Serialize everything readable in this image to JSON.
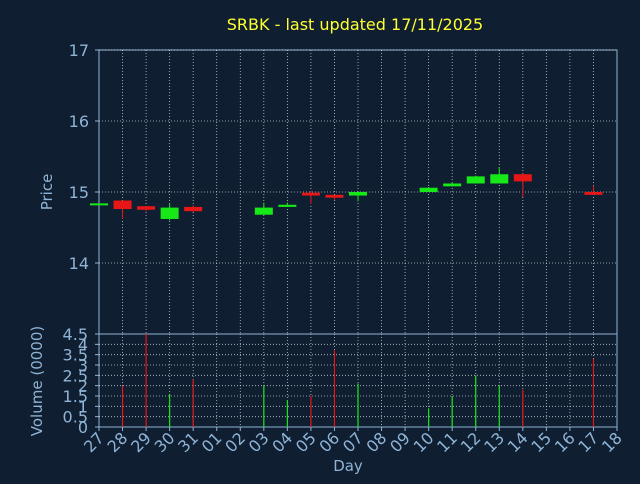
{
  "chart_data": {
    "type": "candlestick",
    "title": "SRBK - last updated 17/11/2025",
    "xlabel": "Day",
    "ylabel": "Price",
    "ylabel_volume": "Volume (0000)",
    "colors": {
      "background": "#0f1e30",
      "axis": "#8fb4d6",
      "title": "#ffff33",
      "up": "#17e817",
      "down": "#e81717",
      "grid": "#ffffff"
    },
    "categories": [
      "27",
      "28",
      "29",
      "30",
      "31",
      "01",
      "02",
      "03",
      "04",
      "05",
      "06",
      "07",
      "08",
      "09",
      "10",
      "11",
      "12",
      "13",
      "14",
      "15",
      "16",
      "17",
      "18"
    ],
    "price_ylim": [
      13.0,
      17.0
    ],
    "price_ticks": [
      "14",
      "15",
      "16",
      "17"
    ],
    "volume_ylim": [
      0,
      4.5
    ],
    "volume_ticks": [
      "0",
      "0.5",
      "1",
      "1.5",
      "2",
      "2.5",
      "3",
      "3.5",
      "4",
      "4.5"
    ],
    "candles": [
      {
        "x": "27",
        "open": 14.84,
        "close": 14.84,
        "high": 14.84,
        "low": 14.84
      },
      {
        "x": "28",
        "open": 14.88,
        "close": 14.76,
        "high": 14.88,
        "low": 14.62
      },
      {
        "x": "29",
        "open": 14.8,
        "close": 14.75,
        "high": 14.8,
        "low": 14.73
      },
      {
        "x": "30",
        "open": 14.62,
        "close": 14.78,
        "high": 14.84,
        "low": 14.6
      },
      {
        "x": "31",
        "open": 14.79,
        "close": 14.73,
        "high": 14.81,
        "low": 14.72
      },
      {
        "x": "03",
        "open": 14.68,
        "close": 14.78,
        "high": 14.85,
        "low": 14.68
      },
      {
        "x": "04",
        "open": 14.79,
        "close": 14.82,
        "high": 14.85,
        "low": 14.79
      },
      {
        "x": "05",
        "open": 14.99,
        "close": 14.95,
        "high": 15.01,
        "low": 14.83
      },
      {
        "x": "06",
        "open": 14.96,
        "close": 14.92,
        "high": 14.96,
        "low": 14.89
      },
      {
        "x": "07",
        "open": 14.95,
        "close": 15.0,
        "high": 15.0,
        "low": 14.87
      },
      {
        "x": "10",
        "open": 15.0,
        "close": 15.06,
        "high": 15.07,
        "low": 15.0
      },
      {
        "x": "11",
        "open": 15.08,
        "close": 15.12,
        "high": 15.14,
        "low": 15.08
      },
      {
        "x": "12",
        "open": 15.12,
        "close": 15.22,
        "high": 15.23,
        "low": 15.12
      },
      {
        "x": "13",
        "open": 15.12,
        "close": 15.25,
        "high": 15.35,
        "low": 15.12
      },
      {
        "x": "14",
        "open": 15.25,
        "close": 15.15,
        "high": 15.26,
        "low": 14.93
      },
      {
        "x": "17",
        "open": 15.0,
        "close": 14.96,
        "high": 15.09,
        "low": 14.96
      }
    ],
    "volume": [
      {
        "x": "27",
        "value": 0.0,
        "dir": "up"
      },
      {
        "x": "28",
        "value": 2.0,
        "dir": "down"
      },
      {
        "x": "29",
        "value": 4.5,
        "dir": "down"
      },
      {
        "x": "30",
        "value": 1.6,
        "dir": "up"
      },
      {
        "x": "31",
        "value": 2.3,
        "dir": "down"
      },
      {
        "x": "03",
        "value": 2.0,
        "dir": "up"
      },
      {
        "x": "04",
        "value": 1.3,
        "dir": "up"
      },
      {
        "x": "05",
        "value": 1.5,
        "dir": "down"
      },
      {
        "x": "06",
        "value": 3.7,
        "dir": "down"
      },
      {
        "x": "07",
        "value": 2.1,
        "dir": "up"
      },
      {
        "x": "10",
        "value": 0.9,
        "dir": "up"
      },
      {
        "x": "11",
        "value": 1.5,
        "dir": "up"
      },
      {
        "x": "12",
        "value": 2.5,
        "dir": "up"
      },
      {
        "x": "13",
        "value": 2.0,
        "dir": "up"
      },
      {
        "x": "14",
        "value": 1.8,
        "dir": "down"
      },
      {
        "x": "17",
        "value": 3.3,
        "dir": "down"
      }
    ]
  }
}
